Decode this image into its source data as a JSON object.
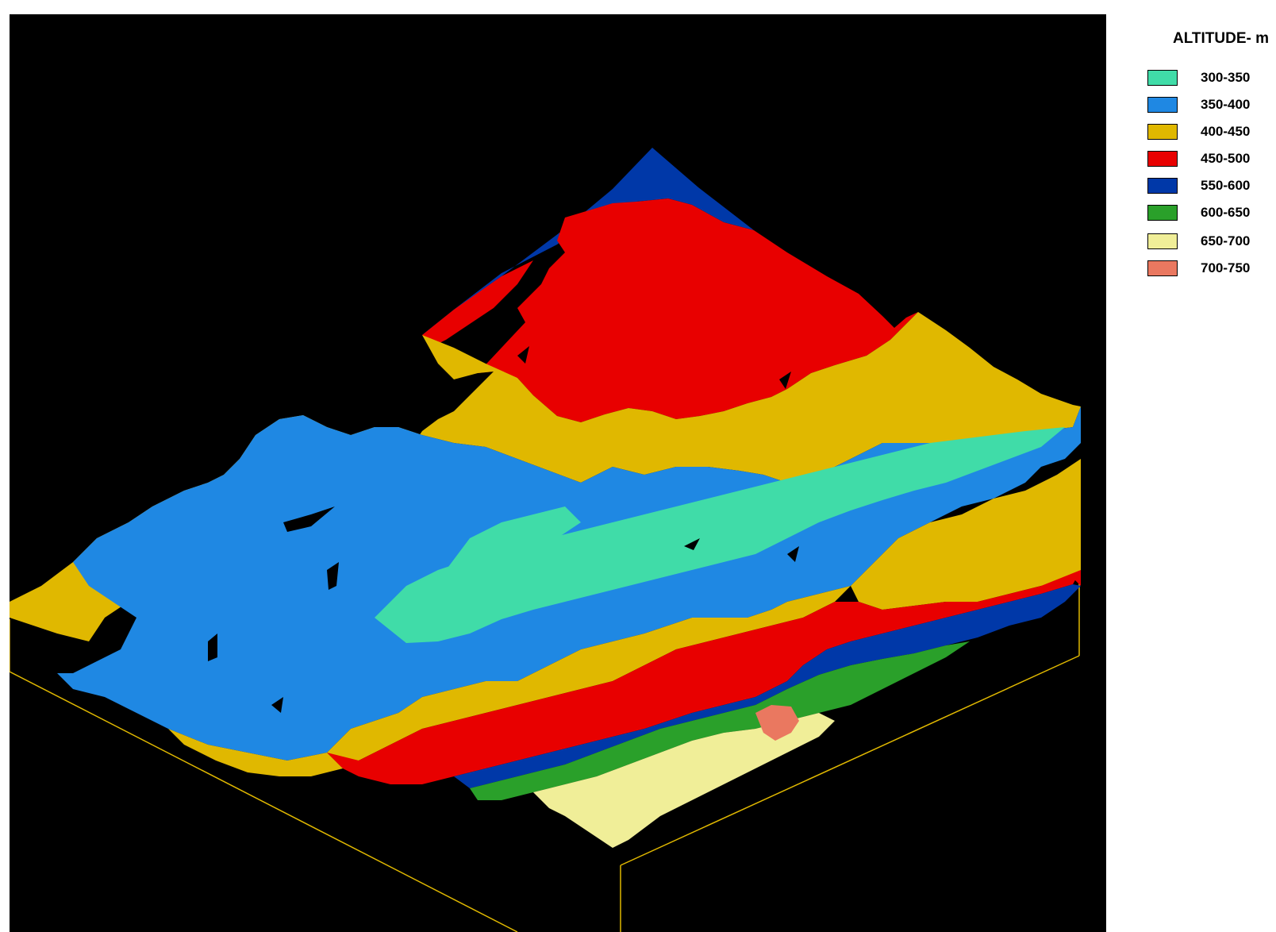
{
  "legend": {
    "title": "ALTITUDE- m",
    "items": [
      {
        "label": "300-350",
        "color": "#40dca8"
      },
      {
        "label": "350-400",
        "color": "#1f88e3"
      },
      {
        "label": "400-450",
        "color": "#e0b800"
      },
      {
        "label": "450-500",
        "color": "#e80000"
      },
      {
        "label": "550-600",
        "color": "#0038a8"
      },
      {
        "label": "600-650",
        "color": "#2aa02a"
      },
      {
        "label": "650-700",
        "color": "#f0ee98"
      },
      {
        "label": "700-750",
        "color": "#ea7860"
      }
    ]
  },
  "view": {
    "background": "#000000",
    "frame_color": "#e0b800"
  }
}
